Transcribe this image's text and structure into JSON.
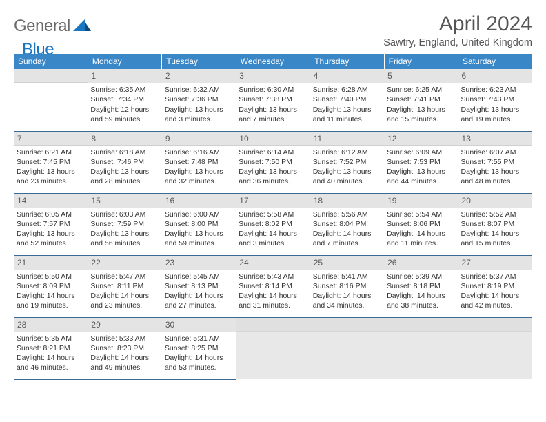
{
  "brand": {
    "part1": "General",
    "part2": "Blue"
  },
  "title": "April 2024",
  "location": "Sawtry, England, United Kingdom",
  "colors": {
    "header_bg": "#3a87c8",
    "header_text": "#ffffff",
    "daynum_bg": "#e4e4e4",
    "cell_border": "#3a6a95",
    "brand_gray": "#6a6a6a",
    "brand_blue": "#1976c1",
    "text": "#333333"
  },
  "weekdays": [
    "Sunday",
    "Monday",
    "Tuesday",
    "Wednesday",
    "Thursday",
    "Friday",
    "Saturday"
  ],
  "first_day_index": 1,
  "days": [
    {
      "n": 1,
      "sr": "6:35 AM",
      "ss": "7:34 PM",
      "dl": "12 hours and 59 minutes."
    },
    {
      "n": 2,
      "sr": "6:32 AM",
      "ss": "7:36 PM",
      "dl": "13 hours and 3 minutes."
    },
    {
      "n": 3,
      "sr": "6:30 AM",
      "ss": "7:38 PM",
      "dl": "13 hours and 7 minutes."
    },
    {
      "n": 4,
      "sr": "6:28 AM",
      "ss": "7:40 PM",
      "dl": "13 hours and 11 minutes."
    },
    {
      "n": 5,
      "sr": "6:25 AM",
      "ss": "7:41 PM",
      "dl": "13 hours and 15 minutes."
    },
    {
      "n": 6,
      "sr": "6:23 AM",
      "ss": "7:43 PM",
      "dl": "13 hours and 19 minutes."
    },
    {
      "n": 7,
      "sr": "6:21 AM",
      "ss": "7:45 PM",
      "dl": "13 hours and 23 minutes."
    },
    {
      "n": 8,
      "sr": "6:18 AM",
      "ss": "7:46 PM",
      "dl": "13 hours and 28 minutes."
    },
    {
      "n": 9,
      "sr": "6:16 AM",
      "ss": "7:48 PM",
      "dl": "13 hours and 32 minutes."
    },
    {
      "n": 10,
      "sr": "6:14 AM",
      "ss": "7:50 PM",
      "dl": "13 hours and 36 minutes."
    },
    {
      "n": 11,
      "sr": "6:12 AM",
      "ss": "7:52 PM",
      "dl": "13 hours and 40 minutes."
    },
    {
      "n": 12,
      "sr": "6:09 AM",
      "ss": "7:53 PM",
      "dl": "13 hours and 44 minutes."
    },
    {
      "n": 13,
      "sr": "6:07 AM",
      "ss": "7:55 PM",
      "dl": "13 hours and 48 minutes."
    },
    {
      "n": 14,
      "sr": "6:05 AM",
      "ss": "7:57 PM",
      "dl": "13 hours and 52 minutes."
    },
    {
      "n": 15,
      "sr": "6:03 AM",
      "ss": "7:59 PM",
      "dl": "13 hours and 56 minutes."
    },
    {
      "n": 16,
      "sr": "6:00 AM",
      "ss": "8:00 PM",
      "dl": "13 hours and 59 minutes."
    },
    {
      "n": 17,
      "sr": "5:58 AM",
      "ss": "8:02 PM",
      "dl": "14 hours and 3 minutes."
    },
    {
      "n": 18,
      "sr": "5:56 AM",
      "ss": "8:04 PM",
      "dl": "14 hours and 7 minutes."
    },
    {
      "n": 19,
      "sr": "5:54 AM",
      "ss": "8:06 PM",
      "dl": "14 hours and 11 minutes."
    },
    {
      "n": 20,
      "sr": "5:52 AM",
      "ss": "8:07 PM",
      "dl": "14 hours and 15 minutes."
    },
    {
      "n": 21,
      "sr": "5:50 AM",
      "ss": "8:09 PM",
      "dl": "14 hours and 19 minutes."
    },
    {
      "n": 22,
      "sr": "5:47 AM",
      "ss": "8:11 PM",
      "dl": "14 hours and 23 minutes."
    },
    {
      "n": 23,
      "sr": "5:45 AM",
      "ss": "8:13 PM",
      "dl": "14 hours and 27 minutes."
    },
    {
      "n": 24,
      "sr": "5:43 AM",
      "ss": "8:14 PM",
      "dl": "14 hours and 31 minutes."
    },
    {
      "n": 25,
      "sr": "5:41 AM",
      "ss": "8:16 PM",
      "dl": "14 hours and 34 minutes."
    },
    {
      "n": 26,
      "sr": "5:39 AM",
      "ss": "8:18 PM",
      "dl": "14 hours and 38 minutes."
    },
    {
      "n": 27,
      "sr": "5:37 AM",
      "ss": "8:19 PM",
      "dl": "14 hours and 42 minutes."
    },
    {
      "n": 28,
      "sr": "5:35 AM",
      "ss": "8:21 PM",
      "dl": "14 hours and 46 minutes."
    },
    {
      "n": 29,
      "sr": "5:33 AM",
      "ss": "8:23 PM",
      "dl": "14 hours and 49 minutes."
    },
    {
      "n": 30,
      "sr": "5:31 AM",
      "ss": "8:25 PM",
      "dl": "14 hours and 53 minutes."
    }
  ],
  "labels": {
    "sunrise": "Sunrise:",
    "sunset": "Sunset:",
    "daylight": "Daylight:"
  }
}
